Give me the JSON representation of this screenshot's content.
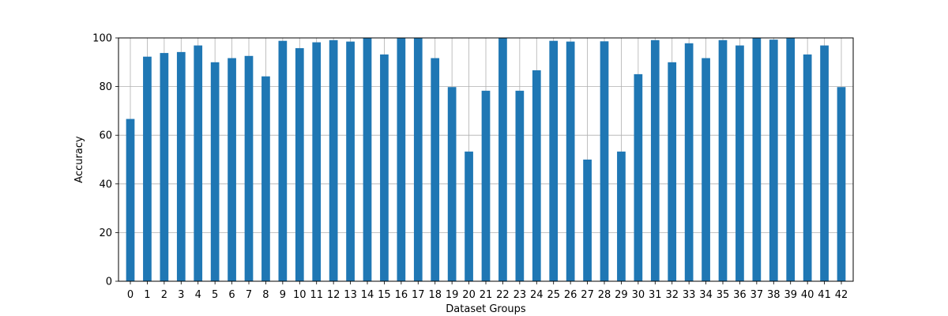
{
  "chart_data": {
    "type": "bar",
    "title": "",
    "xlabel": "Dataset Groups",
    "ylabel": "Accuracy",
    "ylim": [
      0,
      100
    ],
    "yticks": [
      0,
      20,
      40,
      60,
      80,
      100
    ],
    "grid": true,
    "bar_color": "#1f77b4",
    "categories": [
      "0",
      "1",
      "2",
      "3",
      "4",
      "5",
      "6",
      "7",
      "8",
      "9",
      "10",
      "11",
      "12",
      "13",
      "14",
      "15",
      "16",
      "17",
      "18",
      "19",
      "20",
      "21",
      "22",
      "23",
      "24",
      "25",
      "26",
      "27",
      "28",
      "29",
      "30",
      "31",
      "32",
      "33",
      "34",
      "35",
      "36",
      "37",
      "38",
      "39",
      "40",
      "41",
      "42"
    ],
    "values": [
      66.7,
      92.3,
      93.8,
      94.2,
      96.9,
      90.0,
      91.7,
      92.6,
      84.2,
      98.8,
      95.8,
      98.2,
      99.1,
      98.5,
      100,
      93.2,
      100,
      100,
      91.7,
      79.8,
      53.3,
      78.3,
      100,
      78.3,
      86.7,
      98.8,
      98.5,
      50.0,
      98.6,
      53.3,
      85.1,
      99.1,
      90.0,
      97.8,
      91.7,
      99.1,
      96.9,
      100,
      99.3,
      100,
      93.2,
      96.9,
      79.8
    ]
  }
}
